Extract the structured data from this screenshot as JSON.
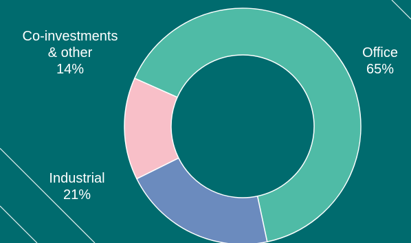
{
  "chart_data": {
    "type": "pie",
    "donut": true,
    "slices": [
      {
        "label": "Office",
        "value": 65,
        "display": "Office\n65%",
        "color": "#4fbba6"
      },
      {
        "label": "Industrial",
        "value": 21,
        "display": "Industrial\n21%",
        "color": "#6b8bbe"
      },
      {
        "label": "Co-investments & other",
        "value": 14,
        "display": "Co-investments\n& other\n14%",
        "color": "#f8bfc8"
      }
    ],
    "start_angle_deg": -66,
    "direction": "clockwise",
    "legend": "none",
    "background_color": "#006b6e"
  }
}
